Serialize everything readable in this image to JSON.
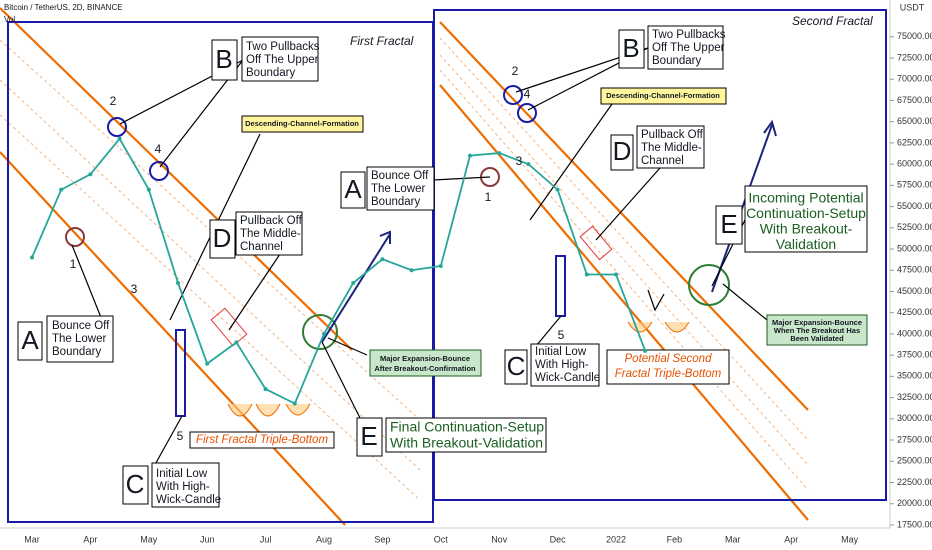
{
  "chart_data": {
    "type": "line",
    "title": "Bitcoin / TetherUS, 2D, BINANCE",
    "volume_label": "Vol",
    "currency": "USDT",
    "categories": [
      "Mar",
      null,
      "Apr",
      null,
      "May",
      null,
      "Jun",
      null,
      "Jul",
      null,
      "Aug",
      null,
      "Sep",
      null,
      "Oct",
      null,
      "Nov",
      null,
      "Dec",
      null,
      "2022",
      null,
      "Feb",
      null,
      "Mar",
      null,
      "Apr",
      null,
      "May"
    ],
    "values": [
      49000,
      57000,
      58800,
      63000,
      57000,
      46000,
      36500,
      39000,
      33500,
      31800,
      40000,
      46000,
      48800,
      47500,
      48000,
      61000,
      61300,
      60000,
      57000,
      47000,
      47000,
      38000,
      null,
      null,
      null,
      null,
      null,
      null,
      null
    ],
    "color": "#26a69a",
    "ylim": [
      14550,
      79330
    ],
    "yticks": [
      {
        "value": 17500,
        "label": "17500.00"
      },
      {
        "value": 20000,
        "label": "20000.00"
      },
      {
        "value": 22500,
        "label": "22500.00"
      },
      {
        "value": 25000,
        "label": "25000.00"
      },
      {
        "value": 27500,
        "label": "27500.00"
      },
      {
        "value": 30000,
        "label": "30000.00"
      },
      {
        "value": 32500,
        "label": "32500.00"
      },
      {
        "value": 35000,
        "label": "35000.00"
      },
      {
        "value": 37500,
        "label": "37500.00"
      },
      {
        "value": 40000,
        "label": "40000.00"
      },
      {
        "value": 42500,
        "label": "42500.00"
      },
      {
        "value": 45000,
        "label": "45000.00"
      },
      {
        "value": 47500,
        "label": "47500.00"
      },
      {
        "value": 50000,
        "label": "50000.00"
      },
      {
        "value": 52500,
        "label": "52500.00"
      },
      {
        "value": 55000,
        "label": "55000.00"
      },
      {
        "value": 57500,
        "label": "57500.00"
      },
      {
        "value": 60000,
        "label": "60000.00"
      },
      {
        "value": 62500,
        "label": "62500.00"
      },
      {
        "value": 65000,
        "label": "65000.00"
      },
      {
        "value": 67500,
        "label": "67500.00"
      },
      {
        "value": 70000,
        "label": "70000.00"
      },
      {
        "value": 72500,
        "label": "72500.00"
      },
      {
        "value": 75000,
        "label": "75000.00"
      }
    ]
  },
  "annotations": {
    "first_fractal": "First Fractal",
    "second_fractal": "Second Fractal",
    "left": {
      "a_letter": "A",
      "a": [
        "Bounce Off",
        "The Lower",
        "Boundary"
      ],
      "b_letter": "B",
      "b": [
        "Two Pullbacks",
        "Off The Upper",
        "Boundary"
      ],
      "c_letter": "C",
      "c": [
        "Initial Low",
        "With High-",
        "Wick-Candle"
      ],
      "d_letter": "D",
      "d": [
        "Pullback Off",
        "The Middle-",
        "Channel"
      ],
      "e_letter": "E",
      "e": [
        "Final Continuation-Setup",
        "With Breakout-Validation"
      ],
      "channel": "Descending-Channel-Formation",
      "triple": "First Fractal Triple-Bottom",
      "expansion": [
        "Major Expansion-Bounce",
        "After Breakout-Confirmation"
      ],
      "pivots": [
        "1",
        "2",
        "3",
        "4",
        "5"
      ]
    },
    "right": {
      "a_letter": "A",
      "a": [
        "Bounce Off",
        "The Lower",
        "Boundary"
      ],
      "b_letter": "B",
      "b": [
        "Two Pullbacks",
        "Off The Upper",
        "Boundary"
      ],
      "c_letter": "C",
      "c": [
        "Initial Low",
        "With High-",
        "Wick-Candle"
      ],
      "d_letter": "D",
      "d": [
        "Pullback Off",
        "The Middle-",
        "Channel"
      ],
      "e_letter": "E",
      "e": [
        "Incoming Potential",
        "Continuation-Setup",
        "With Breakout-",
        "Validation"
      ],
      "channel": "Descending-Channel-Formation",
      "triple": [
        "Potential Second",
        "Fractal Triple-Bottom"
      ],
      "expansion": [
        "Major Expansion-Bounce",
        "When The Breakout Has",
        "Been Validated"
      ],
      "pivots": [
        "1",
        "2",
        "3",
        "4",
        "5"
      ]
    }
  }
}
